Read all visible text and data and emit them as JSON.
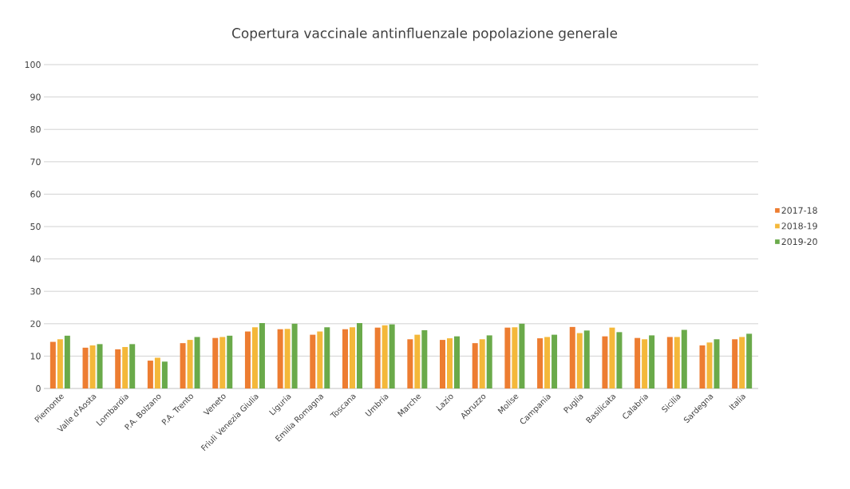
{
  "chart_data": {
    "type": "bar",
    "title": "Copertura vaccinale antinfluenzale popolazione generale",
    "categories": [
      "Piemonte",
      "Valle d'Aosta",
      "Lombardia",
      "P.A. Bolzano",
      "P.A. Trento",
      "Veneto",
      "Friuli Venezia Giulia",
      "Liguria",
      "Emilia Romagna",
      "Toscana",
      "Umbria",
      "Marche",
      "Lazio",
      "Abruzzo",
      "Molise",
      "Campania",
      "Puglia",
      "Basilicata",
      "Calabria",
      "Sicilia",
      "Sardegna",
      "Italia"
    ],
    "series": [
      {
        "name": "2017-18",
        "color": "#ed7d31",
        "values": [
          14.4,
          12.6,
          12.1,
          8.6,
          14.0,
          15.6,
          17.6,
          18.3,
          16.6,
          18.3,
          18.8,
          15.2,
          15.0,
          14.0,
          18.8,
          15.5,
          19.0,
          16.1,
          15.6,
          15.9,
          13.3,
          15.2
        ]
      },
      {
        "name": "2018-19",
        "color": "#f4b83a",
        "values": [
          15.2,
          13.3,
          12.8,
          9.5,
          15.0,
          15.9,
          18.9,
          18.4,
          17.6,
          18.9,
          19.5,
          16.6,
          15.5,
          15.2,
          18.9,
          15.9,
          17.1,
          18.8,
          15.2,
          15.9,
          14.2,
          15.9
        ]
      },
      {
        "name": "2019-20",
        "color": "#6aaa4a",
        "values": [
          16.3,
          13.7,
          13.7,
          8.3,
          15.9,
          16.3,
          20.2,
          20.0,
          18.9,
          20.2,
          19.8,
          18.0,
          16.1,
          16.4,
          20.0,
          16.6,
          17.9,
          17.4,
          16.4,
          18.1,
          15.2,
          16.9
        ]
      }
    ],
    "ylim": [
      0,
      100
    ],
    "yticks": [
      0,
      10,
      20,
      30,
      40,
      50,
      60,
      70,
      80,
      90,
      100
    ],
    "grid": "y",
    "legend": "right"
  }
}
